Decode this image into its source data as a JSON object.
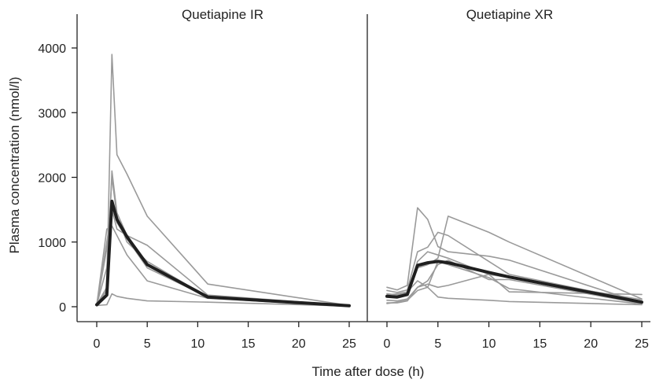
{
  "colors": {
    "individual": "#9a9a9a",
    "mean": "#1f1f1f",
    "axis": "#222222"
  },
  "chart_data": {
    "type": "line",
    "ylabel": "Plasma concentration (nmol/l)",
    "xlabel": "Time after dose (h)",
    "shared_y": true,
    "ylim": [
      -150,
      4150
    ],
    "yticks": [
      0,
      1000,
      2000,
      3000,
      4000
    ],
    "xlim": [
      -1.5,
      26
    ],
    "xticks": [
      0,
      5,
      10,
      15,
      20,
      25
    ],
    "grid": false,
    "legend": "none",
    "panels": [
      {
        "title": "Quetiapine IR",
        "series": [
          {
            "role": "individual",
            "x": [
              0,
              1,
              1.5,
              2,
              3,
              5,
              11,
              25
            ],
            "y": [
              30,
              300,
              3900,
              2350,
              2050,
              1400,
              350,
              20
            ]
          },
          {
            "role": "individual",
            "x": [
              0,
              1,
              1.5,
              2,
              3,
              5,
              11,
              25
            ],
            "y": [
              40,
              250,
              2100,
              1450,
              1100,
              950,
              180,
              20
            ]
          },
          {
            "role": "individual",
            "x": [
              0,
              1,
              1.5,
              2,
              3,
              5,
              11,
              25
            ],
            "y": [
              30,
              600,
              2000,
              1400,
              1000,
              700,
              150,
              15
            ]
          },
          {
            "role": "individual",
            "x": [
              0,
              1,
              1.5,
              2,
              3,
              5,
              11,
              25
            ],
            "y": [
              20,
              900,
              1600,
              1300,
              1050,
              600,
              150,
              20
            ]
          },
          {
            "role": "individual",
            "x": [
              0,
              1,
              1.5,
              2,
              3,
              5,
              11,
              25
            ],
            "y": [
              30,
              1000,
              1500,
              1200,
              1100,
              650,
              160,
              15
            ]
          },
          {
            "role": "individual",
            "x": [
              0,
              1,
              1.5,
              2,
              3,
              5,
              11,
              25
            ],
            "y": [
              25,
              1200,
              1250,
              1100,
              800,
              400,
              130,
              10
            ]
          },
          {
            "role": "individual",
            "x": [
              0,
              1,
              1.5,
              2,
              3,
              5,
              11,
              25
            ],
            "y": [
              20,
              30,
              200,
              160,
              130,
              90,
              70,
              10
            ]
          },
          {
            "role": "mean",
            "x": [
              0,
              1,
              1.5,
              2,
              3,
              5,
              11,
              25
            ],
            "y": [
              30,
              180,
              1630,
              1350,
              1080,
              650,
              150,
              15
            ]
          }
        ]
      },
      {
        "title": "Quetiapine XR",
        "series": [
          {
            "role": "individual",
            "x": [
              0,
              1,
              2,
              3,
              4,
              5,
              6,
              10,
              12,
              25
            ],
            "y": [
              300,
              260,
              330,
              1530,
              1350,
              930,
              850,
              780,
              720,
              60
            ]
          },
          {
            "role": "individual",
            "x": [
              0,
              1,
              2,
              3,
              4,
              5,
              6,
              10,
              12,
              25
            ],
            "y": [
              250,
              220,
              260,
              850,
              920,
              1150,
              1100,
              700,
              500,
              80
            ]
          },
          {
            "role": "individual",
            "x": [
              0,
              1,
              2,
              3,
              4,
              5,
              6,
              10,
              12,
              25
            ],
            "y": [
              200,
              180,
              210,
              600,
              650,
              750,
              1400,
              1150,
              1000,
              120
            ]
          },
          {
            "role": "individual",
            "x": [
              0,
              1,
              2,
              3,
              4,
              5,
              6,
              10,
              12,
              25
            ],
            "y": [
              150,
              150,
              190,
              700,
              850,
              800,
              750,
              500,
              450,
              110
            ]
          },
          {
            "role": "individual",
            "x": [
              0,
              1,
              2,
              3,
              4,
              5,
              6,
              10,
              12,
              25
            ],
            "y": [
              100,
              90,
              120,
              300,
              400,
              650,
              720,
              420,
              420,
              50
            ]
          },
          {
            "role": "individual",
            "x": [
              0,
              1,
              2,
              3,
              4,
              5,
              6,
              10,
              12,
              25
            ],
            "y": [
              50,
              70,
              100,
              250,
              300,
              700,
              650,
              450,
              280,
              40
            ]
          },
          {
            "role": "individual",
            "x": [
              0,
              1,
              2,
              3,
              4,
              5,
              6,
              10,
              12,
              25
            ],
            "y": [
              60,
              60,
              90,
              300,
              350,
              300,
              330,
              500,
              230,
              190
            ]
          },
          {
            "role": "individual",
            "x": [
              0,
              1,
              2,
              3,
              4,
              5,
              6,
              10,
              12,
              25
            ],
            "y": [
              180,
              200,
              230,
              400,
              300,
              150,
              130,
              100,
              80,
              30
            ]
          },
          {
            "role": "mean",
            "x": [
              0,
              1,
              2,
              3,
              4,
              5,
              6,
              10,
              12,
              25
            ],
            "y": [
              160,
              150,
              190,
              640,
              680,
              700,
              680,
              530,
              460,
              70
            ]
          }
        ]
      }
    ]
  }
}
